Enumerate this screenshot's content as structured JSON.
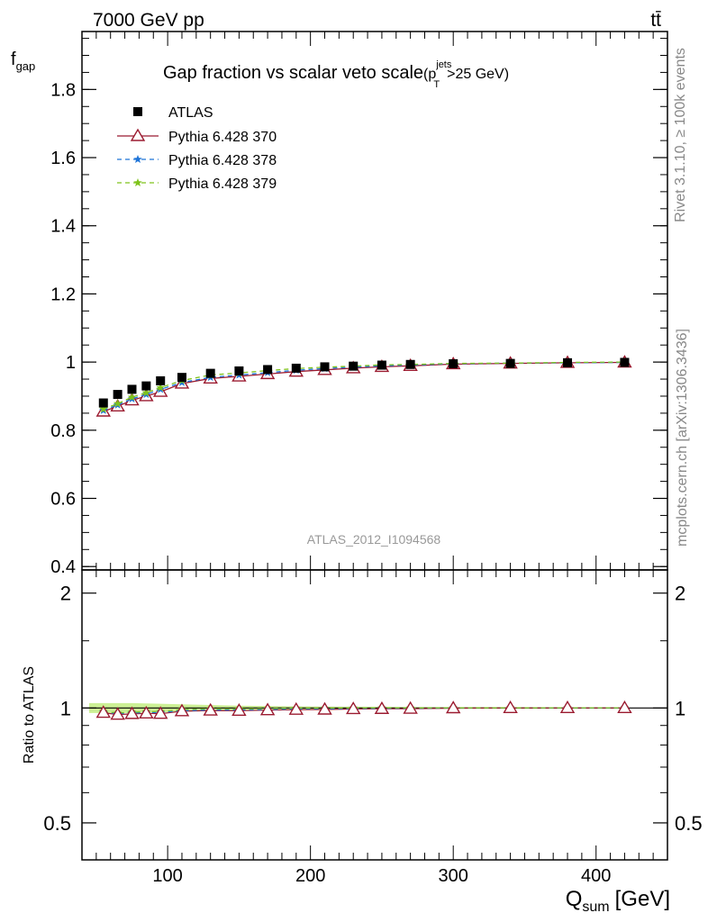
{
  "header": {
    "left": "7000 GeV pp",
    "right": "tt̄"
  },
  "side_labels": {
    "rivet": "Rivet 3.1.10, ≥ 100k events",
    "mcplots": "mcplots.cern.ch [arXiv:1306.3436]"
  },
  "watermark": "ATLAS_2012_I1094568",
  "chart_data": [
    {
      "type": "scatter",
      "title_main": "Gap fraction vs scalar veto scale",
      "title_sub": "(p",
      "title_sup": "jets",
      "title_subscript": "T",
      "title_end": ">25 GeV)",
      "ylabel": "f",
      "ylabel_sub": "gap",
      "xlim": [
        40,
        450
      ],
      "ylim": [
        0.39,
        1.97
      ],
      "yticks": [
        0.4,
        0.6,
        0.8,
        1,
        1.2,
        1.4,
        1.6,
        1.8
      ],
      "ytick_labels": [
        "0.4",
        "0.6",
        "0.8",
        "1",
        "1.2",
        "1.4",
        "1.6",
        "1.8"
      ],
      "legend_position": "top-left",
      "x": [
        55,
        65,
        75,
        85,
        95,
        110,
        130,
        150,
        170,
        190,
        210,
        230,
        250,
        270,
        300,
        340,
        380,
        420
      ],
      "series": [
        {
          "name": "ATLAS",
          "marker": "square",
          "color": "#000000",
          "values": [
            0.88,
            0.905,
            0.92,
            0.93,
            0.945,
            0.955,
            0.967,
            0.974,
            0.978,
            0.982,
            0.986,
            0.988,
            0.991,
            0.993,
            0.995,
            0.996,
            0.998,
            0.999
          ]
        },
        {
          "name": "Pythia 6.428 370",
          "marker": "triangle",
          "line": "solid",
          "color": "#9b1b30",
          "values": [
            0.855,
            0.87,
            0.888,
            0.9,
            0.913,
            0.937,
            0.952,
            0.958,
            0.965,
            0.972,
            0.977,
            0.982,
            0.986,
            0.989,
            0.994,
            0.996,
            0.998,
            0.999
          ]
        },
        {
          "name": "Pythia 6.428 378",
          "marker": "star",
          "line": "dashed",
          "color": "#1e74d8",
          "values": [
            0.858,
            0.874,
            0.892,
            0.905,
            0.92,
            0.94,
            0.955,
            0.962,
            0.969,
            0.976,
            0.981,
            0.985,
            0.989,
            0.991,
            0.995,
            0.997,
            0.998,
            0.999
          ]
        },
        {
          "name": "Pythia 6.428 379",
          "marker": "star",
          "line": "dashed",
          "color": "#7fc31c",
          "values": [
            0.862,
            0.878,
            0.897,
            0.91,
            0.925,
            0.946,
            0.962,
            0.968,
            0.975,
            0.981,
            0.985,
            0.988,
            0.992,
            0.993,
            0.996,
            0.997,
            0.999,
            1.0
          ]
        }
      ]
    },
    {
      "type": "scatter",
      "ylabel": "Ratio to ATLAS",
      "xlabel": "Q",
      "xlabel_sub": "sum",
      "xlabel_unit": "[GeV]",
      "xlim": [
        40,
        450
      ],
      "ylim": [
        0.4,
        2.3
      ],
      "log_y": true,
      "yticks": [
        0.5,
        1,
        2
      ],
      "ytick_labels": [
        "0.5",
        "1",
        "2"
      ],
      "xticks": [
        100,
        200,
        300,
        400
      ],
      "xtick_labels": [
        "100",
        "200",
        "300",
        "400"
      ],
      "band_color": "#c7ee8a",
      "band_halfwidth": [
        0.03,
        0.03,
        0.03,
        0.028,
        0.026,
        0.022,
        0.018,
        0.014,
        0.012,
        0.01,
        0.009,
        0.008,
        0.007,
        0.006,
        0.005,
        0.005,
        0.004,
        0.004
      ],
      "x": [
        55,
        65,
        75,
        85,
        95,
        110,
        130,
        150,
        170,
        190,
        210,
        230,
        250,
        270,
        300,
        340,
        380,
        420
      ],
      "series": [
        {
          "name": "Pythia 6.428 370",
          "marker": "triangle",
          "line": "solid",
          "color": "#9b1b30",
          "values": [
            0.972,
            0.961,
            0.965,
            0.968,
            0.966,
            0.981,
            0.985,
            0.984,
            0.987,
            0.99,
            0.991,
            0.994,
            0.995,
            0.996,
            0.999,
            1.0,
            1.0,
            1.0
          ]
        },
        {
          "name": "Pythia 6.428 378",
          "marker": "star",
          "line": "dashed",
          "color": "#1e74d8",
          "values": [
            0.975,
            0.966,
            0.97,
            0.973,
            0.973,
            0.984,
            0.988,
            0.988,
            0.991,
            0.994,
            0.995,
            0.997,
            0.998,
            0.998,
            1.0,
            1.001,
            1.0,
            1.0
          ]
        },
        {
          "name": "Pythia 6.428 379",
          "marker": "star",
          "line": "dashed",
          "color": "#7fc31c",
          "values": [
            0.98,
            0.97,
            0.975,
            0.978,
            0.979,
            0.991,
            0.995,
            0.994,
            0.997,
            0.999,
            0.999,
            1.0,
            1.001,
            1.0,
            1.001,
            1.001,
            1.001,
            1.001
          ]
        }
      ]
    }
  ]
}
